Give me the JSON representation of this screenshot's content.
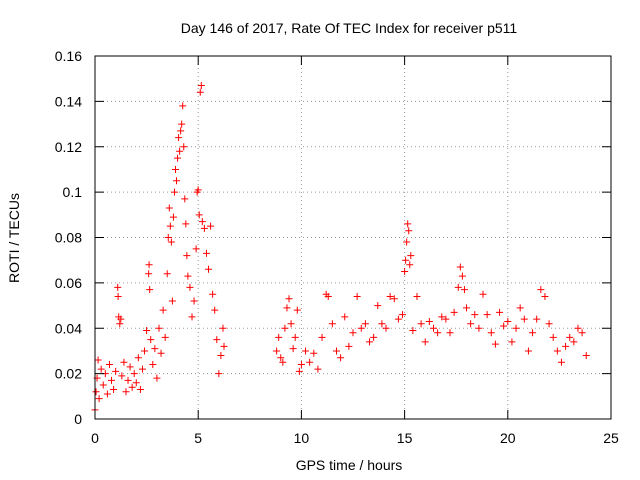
{
  "chart_data": {
    "type": "scatter",
    "title": "Day 146 of 2017, Rate Of TEC Index for receiver p511",
    "xlabel": "GPS time / hours",
    "ylabel": "ROTI / TECUs",
    "xlim": [
      0,
      25
    ],
    "ylim": [
      0,
      0.16
    ],
    "xticks": [
      0,
      5,
      10,
      15,
      20,
      25
    ],
    "xtick_labels": [
      "0",
      "5",
      "10",
      "15",
      "20",
      "25"
    ],
    "yticks": [
      0,
      0.02,
      0.04,
      0.06,
      0.08,
      0.1,
      0.12,
      0.14,
      0.16
    ],
    "ytick_labels": [
      "0",
      "0.02",
      "0.04",
      "0.06",
      "0.08",
      "0.1",
      "0.12",
      "0.14",
      "0.16"
    ],
    "grid": true,
    "marker": "+",
    "series": [
      {
        "name": "ROTI",
        "color": "#ff0000",
        "points": [
          [
            0.0,
            0.004
          ],
          [
            0.05,
            0.012
          ],
          [
            0.1,
            0.018
          ],
          [
            0.15,
            0.026
          ],
          [
            0.2,
            0.009
          ],
          [
            0.3,
            0.022
          ],
          [
            0.4,
            0.015
          ],
          [
            0.5,
            0.02
          ],
          [
            0.6,
            0.011
          ],
          [
            0.7,
            0.024
          ],
          [
            0.8,
            0.017
          ],
          [
            0.9,
            0.013
          ],
          [
            1.0,
            0.021
          ],
          [
            1.1,
            0.058
          ],
          [
            1.12,
            0.054
          ],
          [
            1.15,
            0.045
          ],
          [
            1.2,
            0.042
          ],
          [
            1.25,
            0.044
          ],
          [
            1.3,
            0.019
          ],
          [
            1.4,
            0.025
          ],
          [
            1.5,
            0.012
          ],
          [
            1.6,
            0.017
          ],
          [
            1.7,
            0.023
          ],
          [
            1.8,
            0.014
          ],
          [
            1.9,
            0.02
          ],
          [
            2.0,
            0.016
          ],
          [
            2.1,
            0.027
          ],
          [
            2.2,
            0.013
          ],
          [
            2.3,
            0.022
          ],
          [
            2.4,
            0.03
          ],
          [
            2.5,
            0.039
          ],
          [
            2.6,
            0.064
          ],
          [
            2.62,
            0.068
          ],
          [
            2.65,
            0.057
          ],
          [
            2.7,
            0.035
          ],
          [
            2.8,
            0.024
          ],
          [
            2.9,
            0.031
          ],
          [
            3.0,
            0.018
          ],
          [
            3.1,
            0.04
          ],
          [
            3.2,
            0.029
          ],
          [
            3.3,
            0.048
          ],
          [
            3.4,
            0.036
          ],
          [
            3.5,
            0.064
          ],
          [
            3.55,
            0.08
          ],
          [
            3.6,
            0.093
          ],
          [
            3.65,
            0.085
          ],
          [
            3.7,
            0.078
          ],
          [
            3.75,
            0.052
          ],
          [
            3.8,
            0.089
          ],
          [
            3.85,
            0.1
          ],
          [
            3.9,
            0.11
          ],
          [
            3.95,
            0.105
          ],
          [
            4.0,
            0.115
          ],
          [
            4.05,
            0.124
          ],
          [
            4.1,
            0.118
          ],
          [
            4.15,
            0.127
          ],
          [
            4.2,
            0.13
          ],
          [
            4.25,
            0.138
          ],
          [
            4.3,
            0.12
          ],
          [
            4.35,
            0.097
          ],
          [
            4.4,
            0.086
          ],
          [
            4.45,
            0.072
          ],
          [
            4.5,
            0.063
          ],
          [
            4.6,
            0.058
          ],
          [
            4.7,
            0.045
          ],
          [
            4.8,
            0.052
          ],
          [
            4.9,
            0.075
          ],
          [
            4.95,
            0.1
          ],
          [
            5.0,
            0.101
          ],
          [
            5.05,
            0.09
          ],
          [
            5.1,
            0.144
          ],
          [
            5.15,
            0.147
          ],
          [
            5.2,
            0.087
          ],
          [
            5.3,
            0.084
          ],
          [
            5.4,
            0.073
          ],
          [
            5.5,
            0.066
          ],
          [
            5.6,
            0.085
          ],
          [
            5.7,
            0.055
          ],
          [
            5.8,
            0.048
          ],
          [
            5.9,
            0.035
          ],
          [
            6.0,
            0.02
          ],
          [
            6.1,
            0.028
          ],
          [
            6.2,
            0.04
          ],
          [
            6.25,
            0.032
          ],
          [
            8.8,
            0.03
          ],
          [
            8.9,
            0.036
          ],
          [
            9.0,
            0.027
          ],
          [
            9.1,
            0.025
          ],
          [
            9.2,
            0.04
          ],
          [
            9.3,
            0.049
          ],
          [
            9.4,
            0.053
          ],
          [
            9.5,
            0.042
          ],
          [
            9.6,
            0.031
          ],
          [
            9.7,
            0.036
          ],
          [
            9.8,
            0.048
          ],
          [
            9.9,
            0.021
          ],
          [
            10.0,
            0.024
          ],
          [
            10.2,
            0.03
          ],
          [
            10.4,
            0.025
          ],
          [
            10.6,
            0.029
          ],
          [
            10.8,
            0.022
          ],
          [
            11.0,
            0.036
          ],
          [
            11.2,
            0.055
          ],
          [
            11.3,
            0.054
          ],
          [
            11.5,
            0.042
          ],
          [
            11.7,
            0.03
          ],
          [
            11.9,
            0.027
          ],
          [
            12.1,
            0.045
          ],
          [
            12.3,
            0.032
          ],
          [
            12.5,
            0.038
          ],
          [
            12.7,
            0.054
          ],
          [
            12.9,
            0.04
          ],
          [
            13.1,
            0.042
          ],
          [
            13.3,
            0.034
          ],
          [
            13.5,
            0.036
          ],
          [
            13.7,
            0.05
          ],
          [
            13.9,
            0.042
          ],
          [
            14.1,
            0.04
          ],
          [
            14.3,
            0.054
          ],
          [
            14.5,
            0.053
          ],
          [
            14.7,
            0.044
          ],
          [
            14.9,
            0.046
          ],
          [
            15.0,
            0.065
          ],
          [
            15.05,
            0.07
          ],
          [
            15.1,
            0.078
          ],
          [
            15.15,
            0.086
          ],
          [
            15.2,
            0.083
          ],
          [
            15.25,
            0.068
          ],
          [
            15.3,
            0.072
          ],
          [
            15.4,
            0.039
          ],
          [
            15.6,
            0.054
          ],
          [
            15.8,
            0.042
          ],
          [
            16.0,
            0.034
          ],
          [
            16.2,
            0.043
          ],
          [
            16.4,
            0.04
          ],
          [
            16.6,
            0.038
          ],
          [
            16.8,
            0.045
          ],
          [
            17.0,
            0.044
          ],
          [
            17.2,
            0.038
          ],
          [
            17.4,
            0.047
          ],
          [
            17.6,
            0.058
          ],
          [
            17.7,
            0.067
          ],
          [
            17.8,
            0.063
          ],
          [
            17.9,
            0.057
          ],
          [
            18.0,
            0.049
          ],
          [
            18.2,
            0.042
          ],
          [
            18.4,
            0.046
          ],
          [
            18.6,
            0.04
          ],
          [
            18.8,
            0.055
          ],
          [
            19.0,
            0.046
          ],
          [
            19.2,
            0.038
          ],
          [
            19.4,
            0.033
          ],
          [
            19.6,
            0.047
          ],
          [
            19.8,
            0.041
          ],
          [
            20.0,
            0.043
          ],
          [
            20.2,
            0.034
          ],
          [
            20.4,
            0.04
          ],
          [
            20.6,
            0.049
          ],
          [
            20.8,
            0.044
          ],
          [
            21.0,
            0.03
          ],
          [
            21.2,
            0.038
          ],
          [
            21.4,
            0.044
          ],
          [
            21.6,
            0.057
          ],
          [
            21.8,
            0.054
          ],
          [
            22.0,
            0.042
          ],
          [
            22.2,
            0.036
          ],
          [
            22.4,
            0.03
          ],
          [
            22.6,
            0.025
          ],
          [
            22.8,
            0.032
          ],
          [
            23.0,
            0.036
          ],
          [
            23.2,
            0.034
          ],
          [
            23.4,
            0.04
          ],
          [
            23.6,
            0.038
          ],
          [
            23.8,
            0.028
          ]
        ]
      }
    ]
  }
}
